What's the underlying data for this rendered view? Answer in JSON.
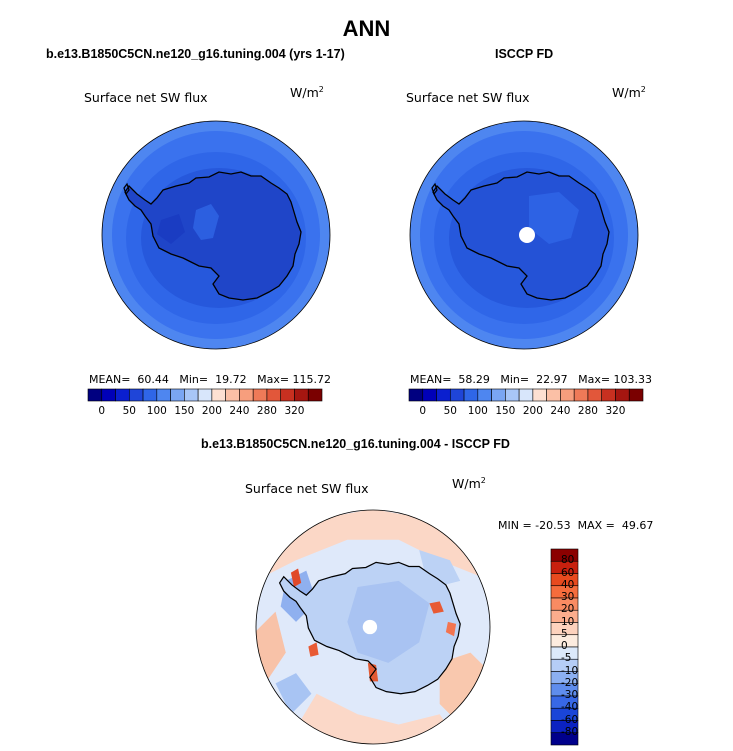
{
  "main_title": "ANN",
  "panels": [
    {
      "title": "b.e13.B1850C5CN.ne120_g16.tuning.004 (yrs 1-17)",
      "variable": "Surface net SW flux",
      "units_base": "W/m",
      "units_exp": "2",
      "stats_text": "MEAN=  60.44   Min=  19.72   Max= 115.72",
      "mean": 60.44,
      "min": 19.72,
      "max": 115.72
    },
    {
      "title": "ISCCP FD",
      "variable": "Surface net SW flux",
      "units_base": "W/m",
      "units_exp": "2",
      "stats_text": "MEAN=  58.29   Min=  22.97   Max= 103.33",
      "mean": 58.29,
      "min": 22.97,
      "max": 103.33
    },
    {
      "title": "b.e13.B1850C5CN.ne120_g16.tuning.004 - ISCCP FD",
      "variable": "Surface net SW flux",
      "units_base": "W/m",
      "units_exp": "2",
      "stats_text": "MIN = -20.53  MAX =  49.67",
      "min": -20.53,
      "max": 49.67
    }
  ],
  "colors": {
    "land_outline": "#000000",
    "ocean_low": "#2f66e8",
    "ocean_mid": "#3a72ee",
    "ocean_high": "#4e86f0",
    "antarctica": "#1f45c8",
    "antarctica_obs": "#2452d6"
  },
  "chart_data": [
    {
      "type": "heatmap",
      "projection": "south-polar-stereographic",
      "title": "b.e13.B1850C5CN.ne120_g16.tuning.004 (yrs 1-17)",
      "variable": "Surface net SW flux",
      "units": "W/m2",
      "colorbar": {
        "levels": [
          "0",
          "50",
          "100",
          "150",
          "200",
          "240",
          "280",
          "320"
        ],
        "colors": [
          "#000080",
          "#0000b8",
          "#0a1fcf",
          "#1f45d8",
          "#2f66e8",
          "#4e86f0",
          "#7aa6f3",
          "#a8c6f7",
          "#d8e6fb",
          "#fde0d2",
          "#fbc0a6",
          "#f79e7d",
          "#ef7a58",
          "#e2573a",
          "#c83020",
          "#a51610",
          "#7a0000"
        ]
      },
      "stats": {
        "mean": 60.44,
        "min": 19.72,
        "max": 115.72
      }
    },
    {
      "type": "heatmap",
      "projection": "south-polar-stereographic",
      "title": "ISCCP FD",
      "variable": "Surface net SW flux",
      "units": "W/m2",
      "colorbar": {
        "levels": [
          "0",
          "50",
          "100",
          "150",
          "200",
          "240",
          "280",
          "320"
        ],
        "colors": [
          "#000080",
          "#0000b8",
          "#0a1fcf",
          "#1f45d8",
          "#2f66e8",
          "#4e86f0",
          "#7aa6f3",
          "#a8c6f7",
          "#d8e6fb",
          "#fde0d2",
          "#fbc0a6",
          "#f79e7d",
          "#ef7a58",
          "#e2573a",
          "#c83020",
          "#a51610",
          "#7a0000"
        ]
      },
      "stats": {
        "mean": 58.29,
        "min": 22.97,
        "max": 103.33
      }
    },
    {
      "type": "heatmap",
      "projection": "south-polar-stereographic",
      "title": "b.e13.B1850C5CN.ne120_g16.tuning.004 - ISCCP FD",
      "variable": "Surface net SW flux",
      "units": "W/m2",
      "colorbar": {
        "levels": [
          "80",
          "60",
          "40",
          "30",
          "20",
          "10",
          "5",
          "0",
          "-5",
          "-10",
          "-20",
          "-30",
          "-40",
          "-60",
          "-80"
        ],
        "colors": [
          "#8b0000",
          "#c8200e",
          "#e84a1e",
          "#f56c3c",
          "#f98b62",
          "#fbad8d",
          "#fdd2bd",
          "#fdecdf",
          "#dce9fa",
          "#b5cdf6",
          "#8cb0f2",
          "#5f8ded",
          "#3868e6",
          "#1a45d8",
          "#0b22c2",
          "#00008b"
        ]
      },
      "stats": {
        "min": -20.53,
        "max": 49.67
      }
    }
  ]
}
